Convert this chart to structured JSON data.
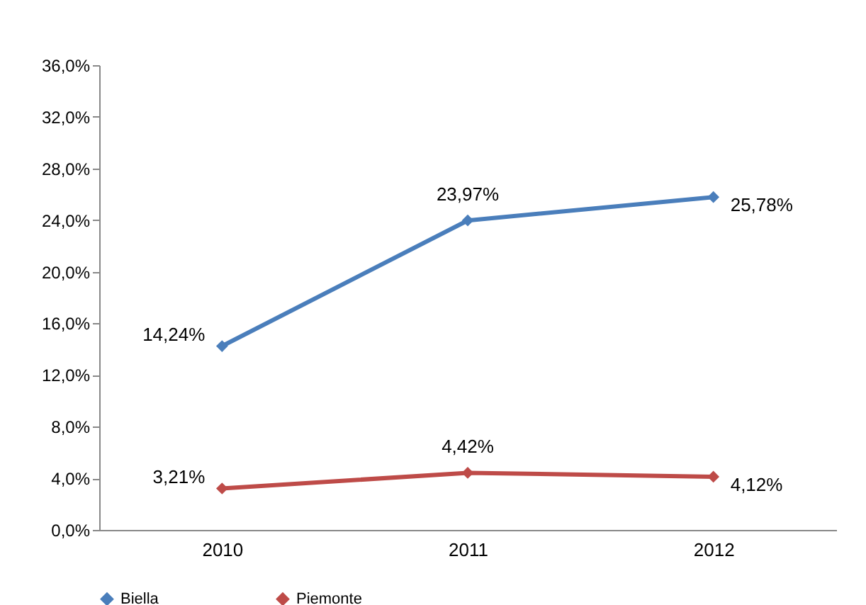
{
  "chart_data": {
    "type": "line",
    "categories": [
      "2010",
      "2011",
      "2012"
    ],
    "series": [
      {
        "name": "Biella",
        "color": "#4a7ebb",
        "values": [
          14.24,
          23.97,
          25.78
        ],
        "value_labels": [
          "14,24%",
          "23,97%",
          "25,78%"
        ]
      },
      {
        "name": "Piemonte",
        "color": "#be4b48",
        "values": [
          3.21,
          4.42,
          4.12
        ],
        "value_labels": [
          "3,21%",
          "4,42%",
          "4,12%"
        ]
      }
    ],
    "ylim": [
      0,
      36
    ],
    "yticks": [
      {
        "value": 0,
        "label": "0,0%"
      },
      {
        "value": 4,
        "label": "4,0%"
      },
      {
        "value": 8,
        "label": "8,0%"
      },
      {
        "value": 12,
        "label": "12,0%"
      },
      {
        "value": 16,
        "label": "16,0%"
      },
      {
        "value": 20,
        "label": "20,0%"
      },
      {
        "value": 24,
        "label": "24,0%"
      },
      {
        "value": 28,
        "label": "28,0%"
      },
      {
        "value": 32,
        "label": "32,0%"
      },
      {
        "value": 36,
        "label": "36,0%"
      }
    ],
    "marker": "diamond",
    "legend": "bottom"
  }
}
